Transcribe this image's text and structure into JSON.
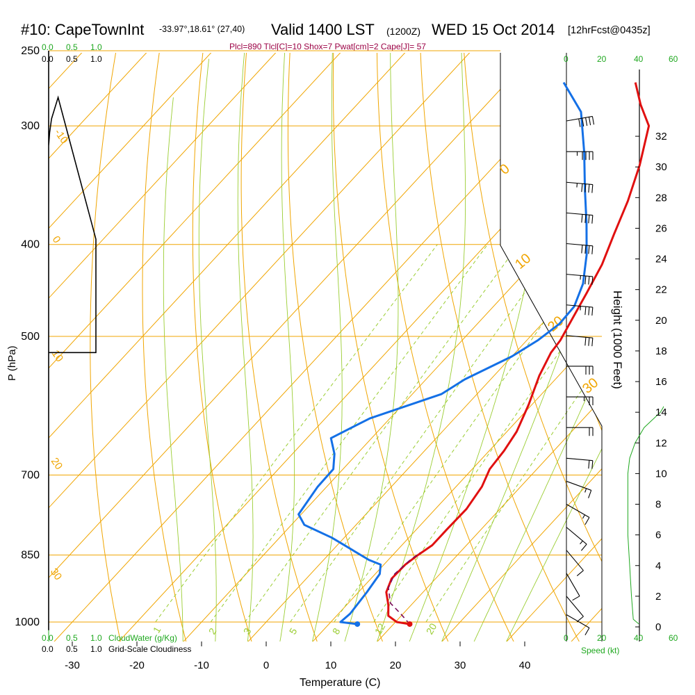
{
  "header": {
    "station": "#10: CapeTownInt",
    "coords": "-33.97°,18.61° (27,40)",
    "valid": "Valid 1400 LST",
    "utc": "(1200Z)",
    "date": "WED 15 Oct 2014",
    "forecast": "[12hrFcst@0435z]"
  },
  "params": "Plcl=890 Tlcl[C]=10 Shox=7 Pwat[cm]=2 Cape[J]= 57",
  "chart_data": {
    "type": "line",
    "xlabel": "Temperature (C)",
    "ylabel": "P (hPa)",
    "y2label": "Height (1000 Feet)",
    "xlim": [
      -35,
      45
    ],
    "pressure_range": [
      1020,
      250
    ],
    "x_ticks": [
      "-30",
      "-20",
      "-10",
      "0",
      "10",
      "20",
      "30",
      "40"
    ],
    "x_tick_values": [
      -30,
      -20,
      -10,
      0,
      10,
      20,
      30,
      40
    ],
    "p_ticks": [
      "250",
      "300",
      "400",
      "500",
      "700",
      "850",
      "1000"
    ],
    "p_tick_values": [
      250,
      300,
      400,
      500,
      700,
      850,
      1000
    ],
    "height_ticks": [
      "0",
      "2",
      "4",
      "6",
      "8",
      "10",
      "12",
      "14",
      "16",
      "18",
      "20",
      "22",
      "24",
      "26",
      "28",
      "30",
      "32"
    ],
    "height_tick_values": [
      0,
      2,
      4,
      6,
      8,
      10,
      12,
      14,
      16,
      18,
      20,
      22,
      24,
      26,
      28,
      30,
      32
    ],
    "series": [
      {
        "name": "Temperature",
        "color": "#e01010",
        "points": [
          [
            22.5,
            1005
          ],
          [
            20.2,
            1000
          ],
          [
            18.0,
            985
          ],
          [
            16.5,
            960
          ],
          [
            14.3,
            930
          ],
          [
            13.2,
            900
          ],
          [
            13.3,
            870
          ],
          [
            13.9,
            850
          ],
          [
            14.7,
            830
          ],
          [
            14.7,
            800
          ],
          [
            14.8,
            760
          ],
          [
            14.0,
            720
          ],
          [
            12.7,
            690
          ],
          [
            12.3,
            660
          ],
          [
            11.5,
            630
          ],
          [
            9.5,
            590
          ],
          [
            7.0,
            550
          ],
          [
            5.5,
            520
          ],
          [
            5.2,
            505
          ],
          [
            4.0,
            480
          ],
          [
            2.5,
            450
          ],
          [
            0.8,
            420
          ],
          [
            -1.7,
            390
          ],
          [
            -4.3,
            360
          ],
          [
            -7.6,
            330
          ],
          [
            -11.8,
            300
          ],
          [
            -16.1,
            285
          ],
          [
            -20.1,
            270
          ]
        ]
      },
      {
        "name": "Dewpoint",
        "color": "#1470e6",
        "points": [
          [
            14.4,
            1005
          ],
          [
            11.5,
            1000
          ],
          [
            11.8,
            980
          ],
          [
            11.3,
            930
          ],
          [
            10.7,
            890
          ],
          [
            9.5,
            870
          ],
          [
            7.0,
            860
          ],
          [
            -1.9,
            815
          ],
          [
            -8.0,
            790
          ],
          [
            -10.4,
            770
          ],
          [
            -11.4,
            720
          ],
          [
            -11.5,
            690
          ],
          [
            -13.5,
            665
          ],
          [
            -16.3,
            640
          ],
          [
            -13.1,
            610
          ],
          [
            -5.5,
            575
          ],
          [
            -4.0,
            555
          ],
          [
            0.0,
            525
          ],
          [
            1.7,
            505
          ],
          [
            2.7,
            485
          ],
          [
            2.5,
            465
          ],
          [
            0.6,
            440
          ],
          [
            -3.0,
            410
          ],
          [
            -7.5,
            380
          ],
          [
            -12.6,
            350
          ],
          [
            -18.0,
            320
          ],
          [
            -24.3,
            290
          ],
          [
            -31.2,
            270
          ]
        ]
      },
      {
        "name": "Parcel",
        "color": "#7a0a5a",
        "points": [
          [
            22.5,
            1005
          ],
          [
            19.6,
            980
          ],
          [
            16.5,
            955
          ],
          [
            14.0,
            920
          ],
          [
            13.0,
            890
          ],
          [
            13.4,
            860
          ],
          [
            13.9,
            845
          ]
        ]
      }
    ],
    "surface": {
      "temperature": 22.5,
      "dewpoint": 14.4
    },
    "cloud_fraction": {
      "name": "Grid-Scale Cloudiness",
      "scale": [
        "0.0",
        "0.5",
        "1.0"
      ],
      "points": [
        [
          0.0,
          1020
        ],
        [
          0.0,
          315
        ],
        [
          0.02,
          305
        ],
        [
          0.06,
          295
        ],
        [
          0.2,
          280
        ],
        [
          1.0,
          395
        ],
        [
          1.0,
          520
        ],
        [
          0.0,
          520
        ],
        [
          0.0,
          250
        ]
      ]
    },
    "cloud_water": {
      "name": "CloudWater (g/Kg)",
      "scale": [
        "0.0",
        "0.5",
        "1.0"
      ]
    },
    "wind_speed": {
      "name": "Speed (kt)",
      "scale": [
        "0",
        "20",
        "40",
        "60"
      ],
      "points": [
        [
          40,
          0.2
        ],
        [
          37,
          0.5
        ],
        [
          36,
          2
        ],
        [
          35,
          4
        ],
        [
          34,
          6
        ],
        [
          34,
          8
        ],
        [
          34,
          10
        ],
        [
          35,
          11
        ],
        [
          38,
          12
        ],
        [
          43,
          13
        ],
        [
          52,
          14
        ],
        [
          56,
          14.8
        ],
        [
          57,
          16
        ],
        [
          58,
          20
        ],
        [
          59,
          24
        ],
        [
          60,
          28
        ],
        [
          63,
          32
        ],
        [
          65,
          33.5
        ]
      ]
    },
    "barbs": [
      {
        "h": 33,
        "dir": 260,
        "spd": 50
      },
      {
        "h": 31,
        "dir": 270,
        "spd": 45
      },
      {
        "h": 29,
        "dir": 275,
        "spd": 45
      },
      {
        "h": 27,
        "dir": 275,
        "spd": 40
      },
      {
        "h": 25,
        "dir": 275,
        "spd": 40
      },
      {
        "h": 23,
        "dir": 275,
        "spd": 35
      },
      {
        "h": 21,
        "dir": 275,
        "spd": 35
      },
      {
        "h": 19,
        "dir": 275,
        "spd": 30
      },
      {
        "h": 17,
        "dir": 270,
        "spd": 30
      },
      {
        "h": 15,
        "dir": 270,
        "spd": 25
      },
      {
        "h": 13,
        "dir": 270,
        "spd": 20
      },
      {
        "h": 11,
        "dir": 275,
        "spd": 20
      },
      {
        "h": 9.5,
        "dir": 290,
        "spd": 15
      },
      {
        "h": 8,
        "dir": 300,
        "spd": 15
      },
      {
        "h": 6.5,
        "dir": 310,
        "spd": 15
      },
      {
        "h": 5,
        "dir": 320,
        "spd": 10
      },
      {
        "h": 3.5,
        "dir": 330,
        "spd": 10
      },
      {
        "h": 2,
        "dir": 320,
        "spd": 10
      },
      {
        "h": 0.8,
        "dir": 300,
        "spd": 10
      }
    ],
    "isotherm_labels": [
      "-10",
      "0",
      "10",
      "20",
      "30",
      "0",
      "10",
      "20",
      "30"
    ],
    "mixing_ratio_labels": [
      "1",
      "2",
      "3",
      "5",
      "8",
      "12",
      "20"
    ]
  },
  "labels": {
    "cloud_top_green": [
      "0.0",
      "0.5",
      "1.0"
    ],
    "cloud_top_black": [
      "0.0",
      "0.5",
      "1.0"
    ],
    "speed_top": [
      "0",
      "20",
      "40",
      "60"
    ],
    "bottom_green": [
      "0.0",
      "0.5",
      "1.0",
      "CloudWater (g/Kg)"
    ],
    "bottom_black": [
      "0.0",
      "0.5",
      "1.0",
      "Grid-Scale Cloudiness"
    ],
    "speed_bottom": [
      "0",
      "20",
      "40",
      "60"
    ],
    "speed_unit": "Speed (kt)"
  },
  "colors": {
    "isotherm": "#f0a500",
    "dry_adiabat": "#f0a500",
    "moist_adiabat": "#9acd32",
    "mixing_ratio": "#9acd32",
    "green_text": "#1fa81f"
  }
}
